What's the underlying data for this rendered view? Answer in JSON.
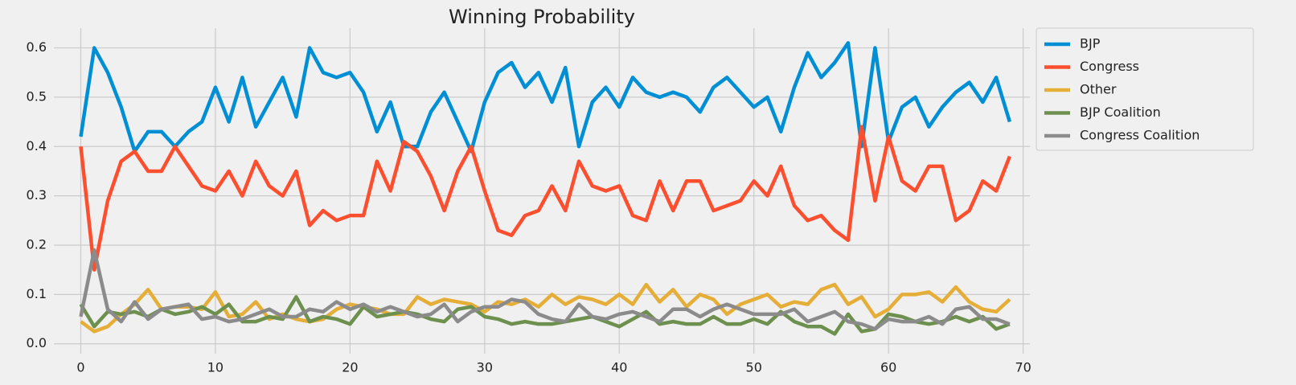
{
  "chart_data": {
    "type": "line",
    "title": "Winning Probability",
    "x": [
      0,
      1,
      2,
      3,
      4,
      5,
      6,
      7,
      8,
      9,
      10,
      11,
      12,
      13,
      14,
      15,
      16,
      17,
      18,
      19,
      20,
      21,
      22,
      23,
      24,
      25,
      26,
      27,
      28,
      29,
      30,
      31,
      32,
      33,
      34,
      35,
      36,
      37,
      38,
      39,
      40,
      41,
      42,
      43,
      44,
      45,
      46,
      47,
      48,
      49,
      50,
      51,
      52,
      53,
      54,
      55,
      56,
      57,
      58,
      59,
      60,
      61,
      62,
      63,
      64,
      65,
      66,
      67,
      68,
      69
    ],
    "series": [
      {
        "name": "BJP",
        "color": "#008fd5",
        "values": [
          0.42,
          0.6,
          0.55,
          0.48,
          0.39,
          0.43,
          0.43,
          0.4,
          0.43,
          0.45,
          0.52,
          0.45,
          0.54,
          0.44,
          0.49,
          0.54,
          0.46,
          0.6,
          0.55,
          0.54,
          0.55,
          0.51,
          0.43,
          0.49,
          0.4,
          0.4,
          0.47,
          0.51,
          0.45,
          0.39,
          0.49,
          0.55,
          0.57,
          0.52,
          0.55,
          0.49,
          0.56,
          0.4,
          0.49,
          0.52,
          0.48,
          0.54,
          0.51,
          0.5,
          0.51,
          0.5,
          0.47,
          0.52,
          0.54,
          0.51,
          0.48,
          0.5,
          0.43,
          0.52,
          0.59,
          0.54,
          0.57,
          0.61,
          0.4,
          0.6,
          0.41,
          0.48,
          0.5,
          0.44,
          0.48,
          0.51,
          0.53,
          0.49,
          0.54,
          0.45
        ]
      },
      {
        "name": "Congress",
        "color": "#fc4f30",
        "values": [
          0.4,
          0.15,
          0.29,
          0.37,
          0.39,
          0.35,
          0.35,
          0.4,
          0.36,
          0.32,
          0.31,
          0.35,
          0.3,
          0.37,
          0.32,
          0.3,
          0.35,
          0.24,
          0.27,
          0.25,
          0.26,
          0.26,
          0.37,
          0.31,
          0.41,
          0.39,
          0.34,
          0.27,
          0.35,
          0.4,
          0.31,
          0.23,
          0.22,
          0.26,
          0.27,
          0.32,
          0.27,
          0.37,
          0.32,
          0.31,
          0.32,
          0.26,
          0.25,
          0.33,
          0.27,
          0.33,
          0.33,
          0.27,
          0.28,
          0.29,
          0.33,
          0.3,
          0.36,
          0.28,
          0.25,
          0.26,
          0.23,
          0.21,
          0.44,
          0.29,
          0.42,
          0.33,
          0.31,
          0.36,
          0.36,
          0.25,
          0.27,
          0.33,
          0.31,
          0.38
        ]
      },
      {
        "name": "Other",
        "color": "#e5ae38",
        "values": [
          0.045,
          0.025,
          0.035,
          0.06,
          0.08,
          0.11,
          0.07,
          0.075,
          0.075,
          0.07,
          0.105,
          0.055,
          0.06,
          0.085,
          0.05,
          0.06,
          0.05,
          0.045,
          0.05,
          0.07,
          0.08,
          0.075,
          0.07,
          0.06,
          0.06,
          0.095,
          0.08,
          0.09,
          0.085,
          0.08,
          0.065,
          0.085,
          0.08,
          0.09,
          0.075,
          0.1,
          0.08,
          0.095,
          0.09,
          0.08,
          0.1,
          0.08,
          0.12,
          0.085,
          0.11,
          0.075,
          0.1,
          0.09,
          0.06,
          0.08,
          0.09,
          0.1,
          0.075,
          0.085,
          0.08,
          0.11,
          0.12,
          0.08,
          0.095,
          0.055,
          0.07,
          0.1,
          0.1,
          0.105,
          0.085,
          0.115,
          0.085,
          0.07,
          0.065,
          0.09
        ]
      },
      {
        "name": "BJP Coalition",
        "color": "#6d904f",
        "values": [
          0.08,
          0.035,
          0.065,
          0.06,
          0.065,
          0.055,
          0.07,
          0.06,
          0.065,
          0.075,
          0.06,
          0.08,
          0.045,
          0.045,
          0.055,
          0.05,
          0.095,
          0.045,
          0.055,
          0.05,
          0.04,
          0.075,
          0.055,
          0.06,
          0.065,
          0.06,
          0.05,
          0.045,
          0.07,
          0.075,
          0.055,
          0.05,
          0.04,
          0.045,
          0.04,
          0.04,
          0.045,
          0.05,
          0.055,
          0.045,
          0.035,
          0.05,
          0.065,
          0.04,
          0.045,
          0.04,
          0.04,
          0.055,
          0.04,
          0.04,
          0.05,
          0.04,
          0.065,
          0.045,
          0.035,
          0.035,
          0.02,
          0.06,
          0.025,
          0.03,
          0.06,
          0.055,
          0.045,
          0.04,
          0.045,
          0.055,
          0.045,
          0.055,
          0.03,
          0.04
        ]
      },
      {
        "name": "Congress Coalition",
        "color": "#8b8b8b",
        "values": [
          0.055,
          0.19,
          0.07,
          0.045,
          0.085,
          0.05,
          0.07,
          0.075,
          0.08,
          0.05,
          0.055,
          0.045,
          0.05,
          0.06,
          0.07,
          0.055,
          0.055,
          0.07,
          0.065,
          0.085,
          0.07,
          0.08,
          0.065,
          0.075,
          0.065,
          0.055,
          0.06,
          0.08,
          0.045,
          0.065,
          0.075,
          0.075,
          0.09,
          0.085,
          0.06,
          0.05,
          0.045,
          0.08,
          0.055,
          0.05,
          0.06,
          0.065,
          0.055,
          0.045,
          0.07,
          0.07,
          0.055,
          0.07,
          0.08,
          0.07,
          0.06,
          0.06,
          0.06,
          0.07,
          0.045,
          0.055,
          0.065,
          0.045,
          0.04,
          0.03,
          0.05,
          0.045,
          0.045,
          0.055,
          0.04,
          0.07,
          0.075,
          0.05,
          0.05,
          0.04
        ]
      }
    ],
    "xlim": [
      -2,
      70.5
    ],
    "xticks": [
      0,
      10,
      20,
      30,
      40,
      50,
      60,
      70
    ],
    "ylim": [
      -0.02,
      0.64
    ],
    "yticks": [
      {
        "value": 0,
        "label": "0.0"
      },
      0.1,
      0.2,
      0.3,
      0.4,
      0.5,
      0.6
    ],
    "grid": true,
    "legend": "outside upper right"
  }
}
